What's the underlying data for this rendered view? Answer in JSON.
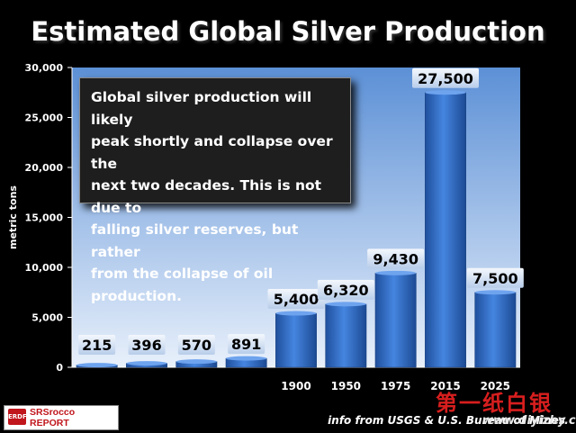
{
  "chart_data": {
    "type": "bar",
    "title": "Estimated Global Silver Production",
    "ylabel": "metric tons",
    "ylim": [
      0,
      30000
    ],
    "yticks": [
      "0",
      "5,000",
      "10,000",
      "15,000",
      "20,000",
      "25,000",
      "30,000"
    ],
    "categories": [
      "",
      "",
      "",
      "",
      "1900",
      "1950",
      "1975",
      "2015",
      "2025"
    ],
    "values": [
      215,
      396,
      570,
      891,
      5400,
      6320,
      9430,
      27500,
      7500
    ],
    "value_labels": [
      "215",
      "396",
      "570",
      "891",
      "5,400",
      "6,320",
      "9,430",
      "27,500",
      "7,500"
    ],
    "bar_color": "#2e6bc8",
    "plot_background": "#c9dcf3"
  },
  "annotation": {
    "lines": [
      "Global silver production will likely",
      "peak shortly and collapse over the",
      "next two decades.  This is not due to",
      "falling silver reserves, but rather",
      "from the collapse of oil production."
    ]
  },
  "logo": {
    "badge": "ERDF",
    "line1": "SRSrocco",
    "line2": "REPORT"
  },
  "source": "info from USGS & U.S. Bureau of Mines",
  "watermark": {
    "text": "第一纸白银",
    "url": "www.diyizby.com"
  }
}
